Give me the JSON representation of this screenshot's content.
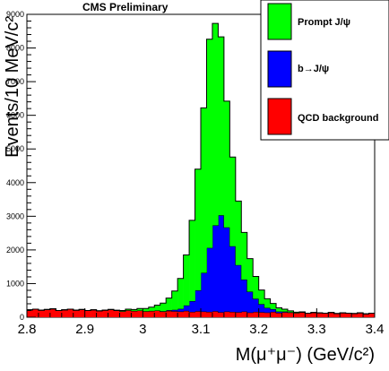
{
  "chart_data": {
    "type": "histogram-stacked",
    "banner": "CMS Preliminary",
    "xlabel": "M(μ⁺μ⁻) (GeV/c²)",
    "ylabel": "Events/10 MeV/c²",
    "xlim": [
      2.8,
      3.4
    ],
    "ylim": [
      0,
      9000
    ],
    "bin_width": 0.01,
    "x_ticks": [
      2.8,
      2.9,
      3.0,
      3.1,
      3.2,
      3.3,
      3.4
    ],
    "x_tick_labels": [
      "2.8",
      "2.9",
      "3",
      "3.1",
      "3.2",
      "3.3",
      "3.4"
    ],
    "y_ticks": [
      0,
      1000,
      2000,
      3000,
      4000,
      5000,
      6000,
      7000,
      8000,
      9000
    ],
    "y_tick_labels": [
      "0",
      "1000",
      "2000",
      "3000",
      "4000",
      "5000",
      "6000",
      "7000",
      "8000",
      "9000"
    ],
    "legend_position": "top-right",
    "series": [
      {
        "name": "QCD background",
        "color": "#ff0000",
        "values": [
          220,
          240,
          210,
          230,
          250,
          200,
          220,
          240,
          210,
          230,
          200,
          220,
          190,
          210,
          230,
          200,
          180,
          210,
          190,
          200,
          180,
          190,
          200,
          170,
          190,
          180,
          170,
          190,
          160,
          180,
          170,
          160,
          180,
          150,
          170,
          160,
          150,
          170,
          140,
          160,
          150,
          140,
          160,
          130,
          150,
          140,
          130,
          150,
          120,
          140,
          130,
          120,
          140,
          110,
          130,
          120,
          110,
          130,
          100,
          120
        ]
      },
      {
        "name": "b→J/ψ",
        "color": "#0000ff",
        "values": [
          0,
          0,
          0,
          0,
          0,
          0,
          0,
          0,
          0,
          0,
          0,
          0,
          0,
          0,
          0,
          0,
          0,
          0,
          0,
          0,
          0,
          0,
          0,
          10,
          20,
          40,
          80,
          160,
          320,
          620,
          1150,
          1900,
          2550,
          2880,
          2500,
          1950,
          1400,
          950,
          620,
          390,
          240,
          140,
          80,
          40,
          20,
          10,
          0,
          0,
          0,
          0,
          0,
          0,
          0,
          0,
          0,
          0,
          0,
          0,
          0,
          0
        ]
      },
      {
        "name": "Prompt J/ψ",
        "color": "#00ff00",
        "values": [
          0,
          0,
          0,
          0,
          0,
          0,
          0,
          0,
          0,
          0,
          0,
          0,
          0,
          0,
          0,
          10,
          20,
          30,
          40,
          60,
          80,
          110,
          160,
          240,
          360,
          560,
          900,
          1500,
          2400,
          3600,
          4900,
          6200,
          6000,
          5300,
          3750,
          2650,
          1900,
          1400,
          980,
          660,
          420,
          270,
          170,
          110,
          70,
          40,
          20,
          10,
          0,
          0,
          0,
          0,
          0,
          0,
          0,
          0,
          0,
          0,
          0,
          0
        ]
      }
    ]
  }
}
